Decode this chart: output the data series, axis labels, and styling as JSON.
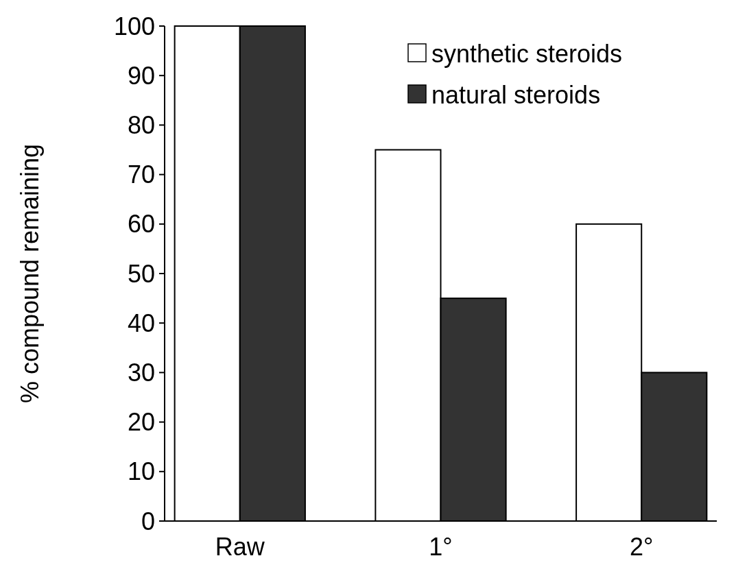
{
  "chart_data": {
    "type": "bar",
    "ylabel": "% compound remaining",
    "categories": [
      "Raw",
      "1°",
      "2°"
    ],
    "series": [
      {
        "name": "synthetic steroids",
        "color": "#ffffff",
        "values": [
          100,
          75,
          60
        ]
      },
      {
        "name": "natural steroids",
        "color": "#333333",
        "values": [
          100,
          45,
          30
        ]
      }
    ],
    "ylim": [
      0,
      100
    ],
    "yticks": [
      0,
      10,
      20,
      30,
      40,
      50,
      60,
      70,
      80,
      90,
      100
    ],
    "legend": "top right",
    "grid": false
  }
}
